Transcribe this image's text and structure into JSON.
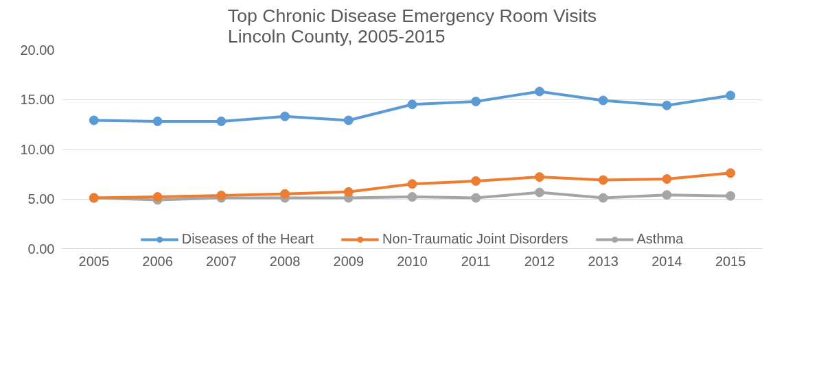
{
  "chart_data": {
    "type": "line",
    "title": "Top Chronic Disease Emergency Room Visits\nLincoln County, 2005-2015",
    "categories": [
      "2005",
      "2006",
      "2007",
      "2008",
      "2009",
      "2010",
      "2011",
      "2012",
      "2013",
      "2014",
      "2015"
    ],
    "series": [
      {
        "name": "Diseases of the Heart",
        "color": "#5b9bd5",
        "values": [
          12.9,
          12.8,
          12.8,
          13.3,
          12.9,
          14.5,
          14.8,
          15.8,
          14.9,
          14.4,
          15.4
        ]
      },
      {
        "name": "Non-Traumatic Joint Disorders",
        "color": "#ed7d31",
        "values": [
          5.1,
          5.2,
          5.35,
          5.5,
          5.7,
          6.5,
          6.8,
          7.2,
          6.9,
          7.0,
          7.6
        ]
      },
      {
        "name": "Asthma",
        "color": "#a5a5a5",
        "values": [
          5.1,
          4.9,
          5.1,
          5.1,
          5.1,
          5.2,
          5.1,
          5.65,
          5.1,
          5.4,
          5.3
        ]
      }
    ],
    "ylim": [
      0,
      20
    ],
    "yticks": [
      {
        "value": 0,
        "label": "0.00"
      },
      {
        "value": 5,
        "label": "5.00"
      },
      {
        "value": 10,
        "label": "10.00"
      },
      {
        "value": 15,
        "label": "15.00"
      },
      {
        "value": 20,
        "label": "20.00"
      }
    ],
    "grid": "y",
    "legend": "bottom",
    "marker": "circle",
    "line_style": "solid"
  }
}
